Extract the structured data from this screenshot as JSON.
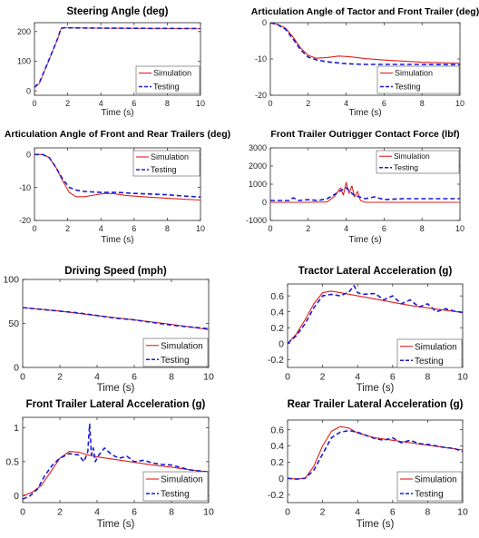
{
  "colors": {
    "simulation": "#e0201b",
    "testing": "#1a1ad6"
  },
  "chart_data": [
    {
      "type": "line",
      "title": "Steering Angle (deg)",
      "xlabel": "Time (s)",
      "ylabel": "",
      "xlim": [
        0,
        10
      ],
      "ylim": [
        -15,
        230
      ],
      "xticks": [
        0,
        2,
        4,
        6,
        8,
        10
      ],
      "yticks": [
        0,
        100,
        200
      ],
      "legend": "bottom-right",
      "series": [
        {
          "name": "Simulation",
          "style": "solid-thin",
          "x": [
            0,
            0.3,
            0.6,
            1.0,
            1.4,
            1.6,
            1.8,
            3,
            6,
            10
          ],
          "y": [
            10,
            25,
            65,
            120,
            175,
            210,
            213,
            212,
            211,
            210
          ]
        },
        {
          "name": "Testing",
          "style": "dashed",
          "x": [
            0,
            0.3,
            0.6,
            1.0,
            1.4,
            1.6,
            1.8,
            3,
            6,
            10
          ],
          "y": [
            12,
            28,
            68,
            122,
            177,
            211,
            213,
            212,
            211,
            210
          ]
        }
      ]
    },
    {
      "type": "line",
      "title": "Articulation Angle of Tactor and Front Trailer (deg)",
      "xlabel": "Time (s)",
      "ylabel": "",
      "xlim": [
        0,
        10
      ],
      "ylim": [
        -20,
        0
      ],
      "xticks": [
        0,
        2,
        4,
        6,
        8,
        10
      ],
      "yticks": [
        0,
        -10,
        -20
      ],
      "legend": "bottom-right",
      "series": [
        {
          "name": "Simulation",
          "style": "solid",
          "x": [
            0,
            0.4,
            0.8,
            1.2,
            1.6,
            2.0,
            2.4,
            3.0,
            3.6,
            4.2,
            5.0,
            6.0,
            8.0,
            10.0
          ],
          "y": [
            0,
            -0.5,
            -1.5,
            -4,
            -7,
            -9,
            -9.8,
            -9.6,
            -9.2,
            -9.4,
            -9.9,
            -10.3,
            -10.9,
            -11.2
          ]
        },
        {
          "name": "Testing",
          "style": "dashed",
          "x": [
            0,
            0.4,
            0.8,
            1.2,
            1.6,
            2.0,
            2.4,
            3.0,
            4.0,
            5.0,
            6.0,
            8.0,
            10.0
          ],
          "y": [
            0,
            -0.6,
            -1.8,
            -4.5,
            -7.5,
            -9.5,
            -10.2,
            -10.8,
            -11.3,
            -11.5,
            -11.5,
            -11.5,
            -11.6
          ]
        }
      ]
    },
    {
      "type": "line",
      "title": "Articulation Angle of Front and Rear Trailers (deg)",
      "xlabel": "Time (s)",
      "ylabel": "",
      "xlim": [
        0,
        10
      ],
      "ylim": [
        -20,
        2
      ],
      "xticks": [
        0,
        2,
        4,
        6,
        8,
        10
      ],
      "yticks": [
        0,
        -10,
        -20
      ],
      "legend": "top-right",
      "series": [
        {
          "name": "Simulation",
          "style": "solid",
          "x": [
            0,
            0.5,
            0.9,
            1.3,
            1.7,
            2.1,
            2.5,
            3.0,
            3.6,
            4.2,
            4.8,
            5.5,
            6.5,
            8.0,
            10.0
          ],
          "y": [
            0,
            0,
            -1,
            -4,
            -8,
            -11.5,
            -12.8,
            -12.8,
            -12.3,
            -11.8,
            -11.9,
            -12.4,
            -12.8,
            -13.3,
            -13.8
          ]
        },
        {
          "name": "Testing",
          "style": "dashed",
          "x": [
            0,
            0.5,
            0.9,
            1.3,
            1.7,
            2.1,
            2.5,
            3.0,
            4.0,
            5.0,
            6.0,
            7.0,
            8.0,
            9.0,
            10.0
          ],
          "y": [
            0,
            0,
            -1,
            -4,
            -7.5,
            -10,
            -10.8,
            -11.2,
            -11.5,
            -11.5,
            -11.8,
            -12.0,
            -12.2,
            -12.6,
            -12.9
          ]
        }
      ]
    },
    {
      "type": "line",
      "title": "Front Trailer Outrigger Contact Force (lbf)",
      "xlabel": "Time (s)",
      "ylabel": "",
      "xlim": [
        0,
        10
      ],
      "ylim": [
        -1000,
        3000
      ],
      "xticks": [
        0,
        2,
        4,
        6,
        8,
        10
      ],
      "yticks": [
        3000,
        2000,
        1000,
        0,
        -1000
      ],
      "legend": "top-right",
      "series": [
        {
          "name": "Simulation",
          "style": "solid",
          "x": [
            0,
            1,
            2,
            3,
            3.4,
            3.7,
            3.85,
            4.0,
            4.15,
            4.3,
            4.45,
            4.6,
            4.75,
            5,
            6,
            8,
            10
          ],
          "y": [
            0,
            0,
            0,
            20,
            350,
            800,
            400,
            1100,
            500,
            900,
            300,
            600,
            100,
            0,
            0,
            0,
            0
          ]
        },
        {
          "name": "Testing",
          "style": "dashed",
          "x": [
            0,
            1,
            1.2,
            1.5,
            2,
            2.5,
            3,
            3.5,
            3.8,
            4.0,
            4.2,
            4.4,
            4.7,
            5.0,
            5.5,
            6,
            7,
            8,
            9,
            10
          ],
          "y": [
            100,
            100,
            250,
            100,
            150,
            100,
            200,
            500,
            700,
            800,
            600,
            400,
            300,
            200,
            300,
            150,
            200,
            200,
            200,
            200
          ]
        }
      ]
    },
    {
      "type": "line",
      "title": "Driving Speed (mph)",
      "xlabel": "Time (s)",
      "ylabel": "",
      "xlim": [
        0,
        10
      ],
      "ylim": [
        0,
        100
      ],
      "xticks": [
        0,
        2,
        4,
        6,
        8,
        10
      ],
      "yticks": [
        0,
        50,
        100
      ],
      "legend": "bottom-right",
      "series": [
        {
          "name": "Simulation",
          "style": "solid",
          "x": [
            0,
            2,
            4,
            6,
            8,
            10
          ],
          "y": [
            68,
            64,
            59,
            54,
            49,
            43
          ]
        },
        {
          "name": "Testing",
          "style": "dashed",
          "x": [
            0,
            1,
            2,
            3,
            4,
            5,
            6,
            7,
            8,
            9,
            10
          ],
          "y": [
            68,
            66,
            64,
            62,
            59,
            56,
            54,
            51,
            48,
            46,
            44
          ]
        }
      ]
    },
    {
      "type": "line",
      "title": "Tractor Lateral Acceleration (g)",
      "xlabel": "Time (s)",
      "ylabel": "",
      "xlim": [
        0,
        10
      ],
      "ylim": [
        -0.3,
        0.75
      ],
      "xticks": [
        0,
        2,
        4,
        6,
        8,
        10
      ],
      "yticks": [
        -0.2,
        0,
        0.2,
        0.4,
        0.6
      ],
      "legend": "bottom-right",
      "series": [
        {
          "name": "Simulation",
          "style": "solid",
          "x": [
            0,
            0.5,
            1,
            1.5,
            2,
            2.5,
            3,
            4,
            5,
            6,
            7,
            8,
            9,
            10
          ],
          "y": [
            0,
            0.12,
            0.3,
            0.5,
            0.64,
            0.66,
            0.64,
            0.6,
            0.56,
            0.52,
            0.48,
            0.45,
            0.42,
            0.39
          ]
        },
        {
          "name": "Testing",
          "style": "dashed",
          "x": [
            0,
            0.5,
            1,
            1.5,
            2,
            2.5,
            3.0,
            3.5,
            3.8,
            4.0,
            4.3,
            5,
            5.5,
            6,
            6.5,
            7,
            7.5,
            8,
            8.5,
            9,
            9.5,
            10
          ],
          "y": [
            0,
            0.1,
            0.25,
            0.45,
            0.6,
            0.62,
            0.6,
            0.65,
            0.73,
            0.64,
            0.62,
            0.63,
            0.55,
            0.6,
            0.5,
            0.55,
            0.46,
            0.5,
            0.4,
            0.44,
            0.41,
            0.39
          ]
        }
      ]
    },
    {
      "type": "line",
      "title": "Front Trailer Lateral Acceleration (g)",
      "xlabel": "Time (s)",
      "ylabel": "",
      "xlim": [
        0,
        10
      ],
      "ylim": [
        -0.1,
        1.15
      ],
      "xticks": [
        0,
        2,
        4,
        6,
        8,
        10
      ],
      "yticks": [
        0,
        0.5,
        1
      ],
      "legend": "bottom-right",
      "series": [
        {
          "name": "Simulation",
          "style": "solid",
          "x": [
            0,
            0.5,
            1,
            1.5,
            2,
            2.5,
            3,
            3.5,
            4,
            5,
            6,
            7,
            8,
            9,
            10
          ],
          "y": [
            0,
            0.05,
            0.15,
            0.35,
            0.55,
            0.65,
            0.64,
            0.6,
            0.57,
            0.53,
            0.49,
            0.45,
            0.42,
            0.38,
            0.35
          ]
        },
        {
          "name": "Testing",
          "style": "dashed",
          "x": [
            0,
            0.4,
            0.8,
            1.2,
            1.6,
            2,
            2.5,
            3,
            3.3,
            3.5,
            3.6,
            3.7,
            3.8,
            3.9,
            4.1,
            4.4,
            4.8,
            5.2,
            5.6,
            6,
            6.5,
            7,
            7.5,
            8,
            9,
            10
          ],
          "y": [
            -0.05,
            0,
            0.1,
            0.3,
            0.45,
            0.55,
            0.62,
            0.6,
            0.5,
            0.65,
            1.05,
            0.6,
            0.7,
            0.5,
            0.6,
            0.7,
            0.6,
            0.55,
            0.58,
            0.5,
            0.52,
            0.48,
            0.46,
            0.45,
            0.38,
            0.35
          ]
        }
      ]
    },
    {
      "type": "line",
      "title": "Rear Trailer Lateral Acceleration (g)",
      "xlabel": "Time (s)",
      "ylabel": "",
      "xlim": [
        0,
        10
      ],
      "ylim": [
        -0.3,
        0.72
      ],
      "xticks": [
        0,
        2,
        4,
        6,
        8,
        10
      ],
      "yticks": [
        -0.2,
        0,
        0.2,
        0.4,
        0.6
      ],
      "legend": "bottom-right",
      "series": [
        {
          "name": "Simulation",
          "style": "solid",
          "x": [
            0,
            0.5,
            1,
            1.5,
            2,
            2.5,
            3,
            3.5,
            4,
            5,
            6,
            7,
            8,
            9,
            10
          ],
          "y": [
            0,
            -0.01,
            0,
            0.15,
            0.4,
            0.58,
            0.64,
            0.62,
            0.56,
            0.5,
            0.47,
            0.44,
            0.41,
            0.38,
            0.35
          ]
        },
        {
          "name": "Testing",
          "style": "dashed",
          "x": [
            0,
            0.5,
            1,
            1.5,
            2,
            2.5,
            3,
            3.5,
            4,
            4.5,
            5,
            5.5,
            6,
            6.5,
            7,
            7.5,
            8,
            8.5,
            9,
            9.5,
            10
          ],
          "y": [
            0,
            -0.01,
            0,
            0.1,
            0.3,
            0.5,
            0.57,
            0.59,
            0.57,
            0.53,
            0.49,
            0.47,
            0.5,
            0.44,
            0.47,
            0.43,
            0.42,
            0.4,
            0.38,
            0.37,
            0.33
          ]
        }
      ]
    }
  ]
}
